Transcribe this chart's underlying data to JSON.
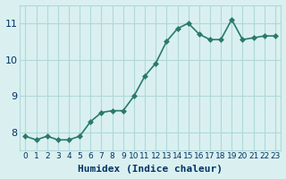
{
  "x": [
    0,
    1,
    2,
    3,
    4,
    5,
    6,
    7,
    8,
    9,
    10,
    11,
    12,
    13,
    14,
    15,
    16,
    17,
    18,
    19,
    20,
    21,
    22,
    23
  ],
  "y": [
    7.9,
    7.8,
    7.9,
    7.8,
    7.8,
    7.9,
    8.3,
    8.55,
    8.6,
    8.6,
    9.0,
    9.55,
    9.9,
    10.5,
    10.85,
    11.0,
    10.7,
    10.55,
    10.55,
    11.1,
    10.55,
    10.6,
    10.65,
    10.65
  ],
  "bg_color": "#daf0f0",
  "line_color": "#2a7a6a",
  "marker_color": "#2a7a6a",
  "grid_color": "#b0d8d8",
  "xlabel": "Humidex (Indice chaleur)",
  "xlabel_color": "#003366",
  "tick_color": "#003366",
  "yticks": [
    8,
    9,
    10,
    11
  ],
  "ylim": [
    7.5,
    11.5
  ],
  "xlim": [
    -0.5,
    23.5
  ],
  "xtick_labels": [
    "0",
    "1",
    "2",
    "3",
    "4",
    "5",
    "6",
    "7",
    "8",
    "9",
    "10",
    "11",
    "12",
    "13",
    "14",
    "15",
    "16",
    "17",
    "18",
    "19",
    "20",
    "21",
    "22",
    "23"
  ],
  "line_width": 1.2,
  "marker_size": 3.0,
  "font_size": 8
}
